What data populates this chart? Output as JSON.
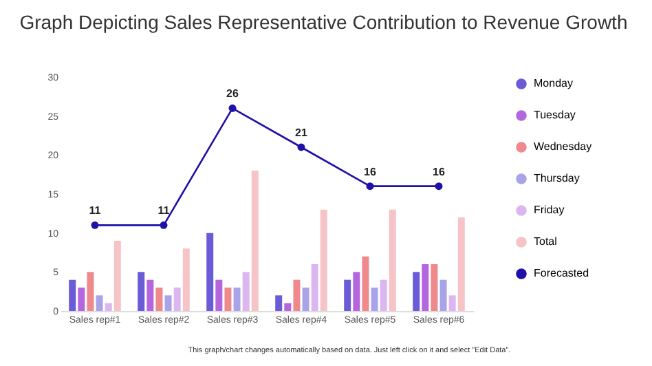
{
  "chart_data": {
    "type": "bar",
    "title": "Graph Depicting Sales Representative Contribution to Revenue Growth",
    "categories": [
      "Sales rep#1",
      "Sales rep#2",
      "Sales rep#3",
      "Sales rep#4",
      "Sales rep#5",
      "Sales rep#6"
    ],
    "series": [
      {
        "name": "Monday",
        "color": "#6a5bd6",
        "values": [
          4,
          5,
          10,
          2,
          4,
          5
        ]
      },
      {
        "name": "Tuesday",
        "color": "#b566de",
        "values": [
          3,
          4,
          4,
          1,
          5,
          6
        ]
      },
      {
        "name": "Wednesday",
        "color": "#ef8a8c",
        "values": [
          5,
          3,
          3,
          4,
          7,
          6
        ]
      },
      {
        "name": "Thursday",
        "color": "#a9a4ea",
        "values": [
          2,
          2,
          3,
          3,
          3,
          4
        ]
      },
      {
        "name": "Friday",
        "color": "#dcb6f0",
        "values": [
          1,
          3,
          5,
          6,
          4,
          2
        ]
      },
      {
        "name": "Total",
        "color": "#f6c3c6",
        "values": [
          9,
          8,
          18,
          13,
          13,
          12
        ]
      },
      {
        "name": "Forecasted",
        "color": "#1f10a8",
        "type": "line",
        "marker": "circle",
        "values": [
          11,
          11,
          26,
          21,
          16,
          16
        ],
        "value_labels": [
          "11",
          "11",
          "26",
          "21",
          "16",
          "16"
        ]
      }
    ],
    "ylim": [
      0,
      30
    ],
    "yticks": [
      0,
      5,
      10,
      15,
      20,
      25,
      30
    ],
    "grid": false,
    "legend": "right",
    "annotations": [
      "This graph/chart changes automatically based on data. Just left click on it and select \"Edit Data\"."
    ]
  }
}
